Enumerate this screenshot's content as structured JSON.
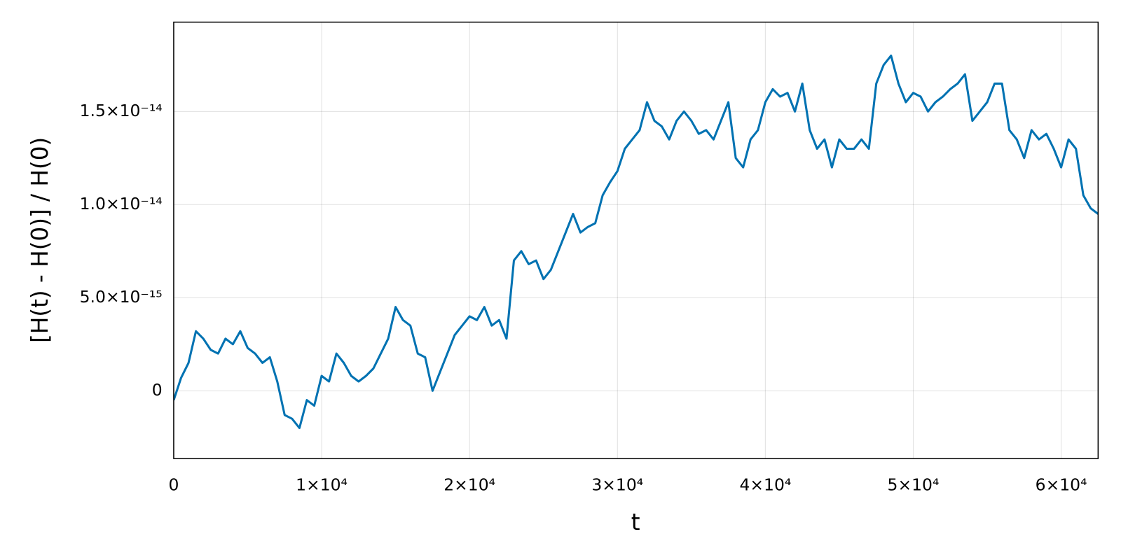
{
  "chart_data": {
    "type": "line",
    "x_label": "t",
    "y_label": "[H(t) - H(0)] / H(0)",
    "color": "#0072b2",
    "grid": true,
    "xlim": [
      0,
      62500
    ],
    "ylim": [
      -3.64e-15,
      1.98e-14
    ],
    "xticks": [
      0,
      {
        "value": 10000,
        "label": "1×10⁴"
      },
      {
        "value": 20000,
        "label": "2×10⁴"
      },
      {
        "value": 30000,
        "label": "3×10⁴"
      },
      {
        "value": 40000,
        "label": "4×10⁴"
      },
      {
        "value": 50000,
        "label": "5×10⁴"
      },
      {
        "value": 60000,
        "label": "6×10⁴"
      }
    ],
    "yticks": [
      0,
      {
        "value": 5e-15,
        "label": "5.0×10⁻¹⁵"
      },
      {
        "value": 1e-14,
        "label": "1.0×10⁻¹⁴"
      },
      {
        "value": 1.5e-14,
        "label": "1.5×10⁻¹⁴"
      }
    ],
    "x": [
      0,
      500,
      1000,
      1500,
      2000,
      2500,
      3000,
      3500,
      4000,
      4500,
      5000,
      5500,
      6000,
      6500,
      7000,
      7500,
      8000,
      8500,
      9000,
      9500,
      10000,
      10500,
      11000,
      11500,
      12000,
      12500,
      13000,
      13500,
      14000,
      14500,
      15000,
      15500,
      16000,
      16500,
      17000,
      17500,
      18000,
      18500,
      19000,
      19500,
      20000,
      20500,
      21000,
      21500,
      22000,
      22500,
      23000,
      23500,
      24000,
      24500,
      25000,
      25500,
      26000,
      26500,
      27000,
      27500,
      28000,
      28500,
      29000,
      29500,
      30000,
      30500,
      31000,
      31500,
      32000,
      32500,
      33000,
      33500,
      34000,
      34500,
      35000,
      35500,
      36000,
      36500,
      37000,
      37500,
      38000,
      38500,
      39000,
      39500,
      40000,
      40500,
      41000,
      41500,
      42000,
      42500,
      43000,
      43500,
      44000,
      44500,
      45000,
      45500,
      46000,
      46500,
      47000,
      47500,
      48000,
      48500,
      49000,
      49500,
      50000,
      50500,
      51000,
      51500,
      52000,
      52500,
      53000,
      53500,
      54000,
      54500,
      55000,
      55500,
      56000,
      56500,
      57000,
      57500,
      58000,
      58500,
      59000,
      59500,
      60000,
      60500,
      61000,
      61500,
      62000,
      62500
    ],
    "values": [
      -5e-16,
      7e-16,
      1.5e-15,
      3.2e-15,
      2.8e-15,
      2.2e-15,
      2e-15,
      2.8e-15,
      2.5e-15,
      3.2e-15,
      2.3e-15,
      2e-15,
      1.5e-15,
      1.8e-15,
      5e-16,
      -1.3e-15,
      -1.5e-15,
      -2e-15,
      -5e-16,
      -8e-16,
      8e-16,
      5e-16,
      2e-15,
      1.5e-15,
      8e-16,
      5e-16,
      8e-16,
      1.2e-15,
      2e-15,
      2.8e-15,
      4.5e-15,
      3.8e-15,
      3.5e-15,
      2e-15,
      1.8e-15,
      0,
      1e-15,
      2e-15,
      3e-15,
      3.5e-15,
      4e-15,
      3.8e-15,
      4.5e-15,
      3.5e-15,
      3.8e-15,
      2.8e-15,
      7e-15,
      7.5e-15,
      6.8e-15,
      7e-15,
      6e-15,
      6.5e-15,
      7.5e-15,
      8.5e-15,
      9.5e-15,
      8.5e-15,
      8.8e-15,
      9e-15,
      1.05e-14,
      1.12e-14,
      1.18e-14,
      1.3e-14,
      1.35e-14,
      1.4e-14,
      1.55e-14,
      1.45e-14,
      1.42e-14,
      1.35e-14,
      1.45e-14,
      1.5e-14,
      1.45e-14,
      1.38e-14,
      1.4e-14,
      1.35e-14,
      1.45e-14,
      1.55e-14,
      1.25e-14,
      1.2e-14,
      1.35e-14,
      1.4e-14,
      1.55e-14,
      1.62e-14,
      1.58e-14,
      1.6e-14,
      1.5e-14,
      1.65e-14,
      1.4e-14,
      1.3e-14,
      1.35e-14,
      1.2e-14,
      1.35e-14,
      1.3e-14,
      1.3e-14,
      1.35e-14,
      1.3e-14,
      1.65e-14,
      1.75e-14,
      1.8e-14,
      1.65e-14,
      1.55e-14,
      1.6e-14,
      1.58e-14,
      1.5e-14,
      1.55e-14,
      1.58e-14,
      1.62e-14,
      1.65e-14,
      1.7e-14,
      1.45e-14,
      1.5e-14,
      1.55e-14,
      1.65e-14,
      1.65e-14,
      1.4e-14,
      1.35e-14,
      1.25e-14,
      1.4e-14,
      1.35e-14,
      1.38e-14,
      1.3e-14,
      1.2e-14,
      1.35e-14,
      1.3e-14,
      1.05e-14,
      9.8e-15,
      9.5e-15
    ]
  }
}
